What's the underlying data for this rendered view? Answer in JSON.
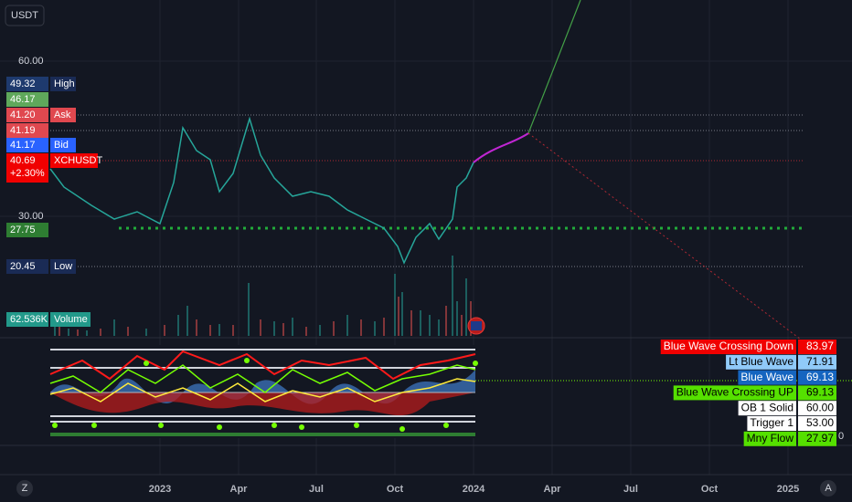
{
  "toolbar": {
    "currency": "USDT"
  },
  "price_scale": {
    "ticks": [
      {
        "value": "60.00"
      },
      {
        "value": "30.00"
      }
    ],
    "labels": [
      {
        "value": "49.32",
        "name": "High"
      },
      {
        "value": "46.17"
      },
      {
        "value": "41.20",
        "name": "Ask"
      },
      {
        "value": "41.19"
      },
      {
        "value": "41.17",
        "name": "Bid"
      },
      {
        "value": "40.69",
        "change": "+2.30%",
        "name": "XCHUSDT"
      },
      {
        "value": "27.75"
      },
      {
        "value": "20.45",
        "name": "Low"
      },
      {
        "value": "62.536K",
        "name": "Volume"
      }
    ]
  },
  "indicator_legend": [
    {
      "name": "Blue Wave Crossing Down",
      "value": "83.97"
    },
    {
      "name": "Lt Blue Wave",
      "value": "71.91"
    },
    {
      "name": "Blue Wave",
      "value": "69.13"
    },
    {
      "name": "Blue Wave Crossing UP",
      "value": "69.13"
    },
    {
      "name": "OB 1 Solid",
      "value": "60.00"
    },
    {
      "name": "Trigger 1",
      "value": "53.00"
    },
    {
      "name": "Mny Flow",
      "value": "27.97"
    }
  ],
  "indicator_zero": "0",
  "time_axis": [
    "2023",
    "Apr",
    "Jul",
    "Oct",
    "2024",
    "Apr",
    "Jul",
    "Oct",
    "2025"
  ],
  "corner_buttons": {
    "left": "Z",
    "right": "A"
  }
}
